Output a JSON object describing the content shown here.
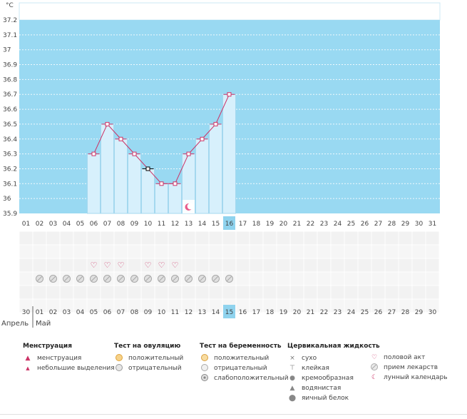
{
  "chart_data": {
    "type": "bar-line",
    "title": "",
    "ylabel": "°C",
    "ylim": [
      35.9,
      37.2
    ],
    "y_ticks": [
      "37.2",
      "37.1",
      "37",
      "36.9",
      "36.8",
      "36.7",
      "36.6",
      "36.5",
      "36.4",
      "36.3",
      "36.2",
      "36.1",
      "36",
      "35.9"
    ],
    "cycle_days": [
      "01",
      "02",
      "03",
      "04",
      "05",
      "06",
      "07",
      "08",
      "09",
      "10",
      "11",
      "12",
      "13",
      "14",
      "15",
      "16",
      "17",
      "18",
      "19",
      "20",
      "21",
      "22",
      "23",
      "24",
      "25",
      "26",
      "27",
      "28",
      "29",
      "30",
      "31"
    ],
    "current_day": "16",
    "series": [
      {
        "name": "temperature",
        "days": [
          "06",
          "07",
          "08",
          "09",
          "10",
          "11",
          "12",
          "13",
          "14",
          "15",
          "16"
        ],
        "values": [
          36.3,
          36.5,
          36.4,
          36.3,
          36.2,
          36.1,
          36.1,
          36.3,
          36.4,
          36.5,
          36.7
        ]
      }
    ],
    "open_point_day": "10",
    "moon_day": "13",
    "intercourse_days": [
      "06",
      "07",
      "08",
      "10",
      "11",
      "12"
    ],
    "medication_days": [
      "02",
      "03",
      "04",
      "05",
      "06",
      "07",
      "08",
      "09",
      "10",
      "11",
      "12",
      "13",
      "14",
      "15",
      "16"
    ],
    "calendar_dates": [
      "30",
      "01",
      "02",
      "03",
      "04",
      "05",
      "06",
      "07",
      "08",
      "09",
      "10",
      "11",
      "12",
      "13",
      "14",
      "15",
      "16",
      "17",
      "18",
      "19",
      "20",
      "21",
      "22",
      "23",
      "24",
      "25",
      "26",
      "27",
      "28",
      "29",
      "30"
    ],
    "weekend_dates": [
      "03",
      "04",
      "10",
      "11",
      "17",
      "18",
      "24",
      "25"
    ],
    "today_date": "15",
    "months": [
      "Апрель",
      "Май"
    ]
  },
  "colors": {
    "sky": "#99d9f2",
    "bar": "#d7f0fc",
    "bar_edge": "#a4d8ef",
    "line": "#cc3366",
    "highlight": "#8fd3ee",
    "weekend": "#cc3355"
  },
  "legend": {
    "menstruation": {
      "title": "Менструация",
      "items": [
        "менструация",
        "небольшие выделения"
      ]
    },
    "ovulation": {
      "title": "Тест на овуляцию",
      "items": [
        "положительный",
        "отрицательный"
      ]
    },
    "pregnancy": {
      "title": "Тест на беременность",
      "items": [
        "положительный",
        "отрицательный",
        "слабоположительный"
      ]
    },
    "cervical": {
      "title": "Цервикальная жидкость",
      "items": [
        "сухо",
        "клейкая",
        "кремообразная",
        "водянистая",
        "яичный белок"
      ]
    },
    "other": {
      "items": [
        "половой акт",
        "прием лекарств",
        "лунный календарь"
      ]
    }
  }
}
